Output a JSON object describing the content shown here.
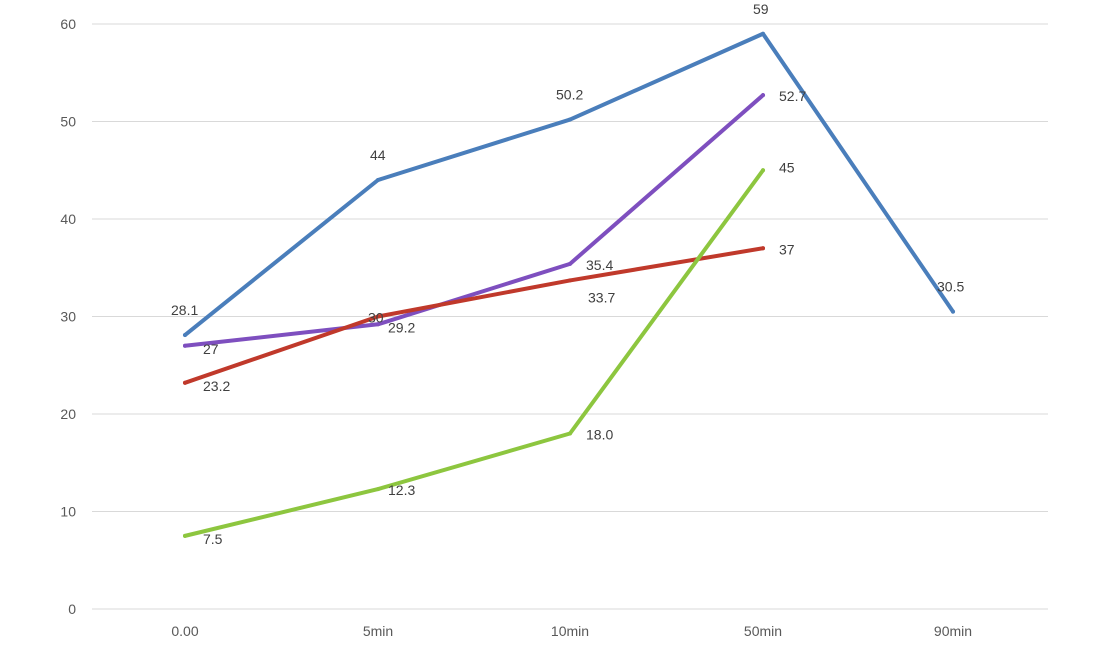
{
  "chart_data": {
    "type": "line",
    "title": "",
    "xlabel": "",
    "ylabel": "",
    "categories": [
      "0.00",
      "5min",
      "10min",
      "50min",
      "90min"
    ],
    "ylim": [
      0,
      60
    ],
    "yticks": [
      0,
      10,
      20,
      30,
      40,
      50,
      60
    ],
    "grid": true,
    "legend": "none",
    "series": [
      {
        "color": "#4a7ebb",
        "values": [
          28.1,
          44,
          50.2,
          59,
          30.5
        ],
        "labels": [
          "28.1",
          "44",
          "50.2",
          "59",
          "30.5"
        ]
      },
      {
        "color": "#7e4fbf",
        "values": [
          27,
          29.2,
          35.4,
          52.7,
          null
        ],
        "labels": [
          "27",
          "29.2",
          "35.4",
          "52.7",
          ""
        ]
      },
      {
        "color": "#c0392b",
        "values": [
          23.2,
          30,
          33.7,
          37,
          null
        ],
        "labels": [
          "23.2",
          "30",
          "33.7",
          "37",
          ""
        ]
      },
      {
        "color": "#8dc63f",
        "values": [
          7.5,
          12.3,
          18.0,
          45,
          null
        ],
        "labels": [
          "7.5",
          "12.3",
          "18.0",
          "45",
          ""
        ]
      }
    ]
  }
}
